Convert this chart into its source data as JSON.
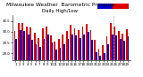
{
  "title": "Milwaukee Weather  Barometric Pressure",
  "subtitle": "Daily High/Low",
  "ylim": [
    28.7,
    30.75
  ],
  "yticks": [
    29.0,
    29.5,
    30.0,
    30.5
  ],
  "bar_color_high": "#dd0000",
  "bar_color_low": "#0000cc",
  "background_color": "#ffffff",
  "days": [
    1,
    2,
    3,
    4,
    5,
    6,
    7,
    8,
    9,
    10,
    11,
    12,
    13,
    14,
    15,
    16,
    17,
    18,
    19,
    20,
    21,
    22,
    23,
    24,
    25,
    26,
    27,
    28,
    29
  ],
  "highs": [
    30.05,
    30.4,
    30.42,
    30.22,
    30.18,
    29.95,
    29.72,
    30.15,
    30.25,
    29.85,
    29.55,
    29.68,
    29.88,
    30.05,
    30.3,
    30.15,
    30.08,
    30.22,
    30.35,
    30.08,
    29.62,
    29.22,
    29.38,
    29.78,
    30.42,
    30.25,
    30.05,
    29.92,
    30.12
  ],
  "lows": [
    29.68,
    30.08,
    30.02,
    29.88,
    29.62,
    29.42,
    29.32,
    29.68,
    29.88,
    29.52,
    29.18,
    29.28,
    29.42,
    29.68,
    29.88,
    29.82,
    29.72,
    29.88,
    29.98,
    29.62,
    29.08,
    28.88,
    29.02,
    29.42,
    29.88,
    29.82,
    29.68,
    29.58,
    29.78
  ],
  "vline_day_idx": 24,
  "title_fontsize": 4.2,
  "tick_fontsize": 2.8,
  "bar_width": 0.4,
  "bar_bottom": 28.7
}
